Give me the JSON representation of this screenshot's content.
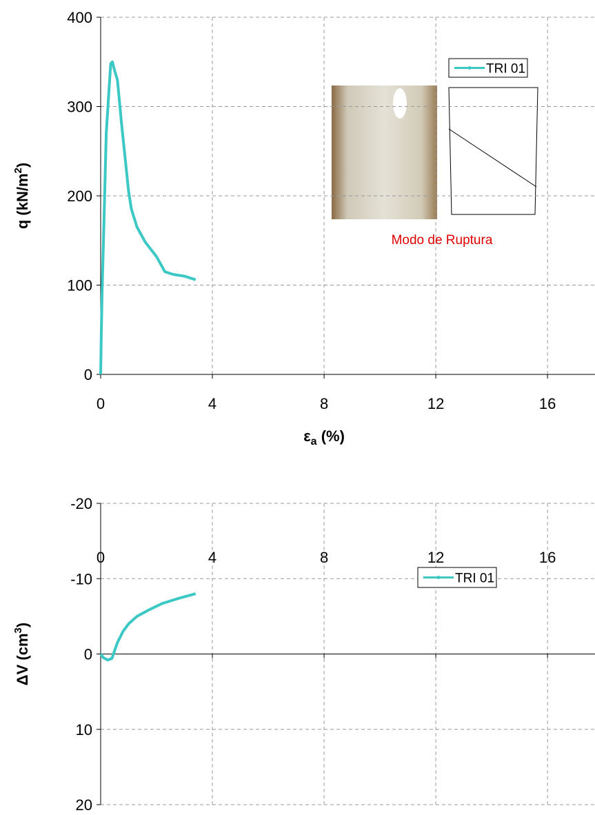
{
  "chart_data": [
    {
      "type": "line",
      "y_label": {
        "text": "q (kN/m",
        "sup": "2",
        "end": ")"
      },
      "x_label": {
        "symbol": "ε",
        "sub": "a",
        "unit": " (%)"
      },
      "annotation": "Modo de Ruptura",
      "xlim": [
        0,
        17.7
      ],
      "xticks": [
        0,
        4,
        8,
        12,
        16
      ],
      "ylim": [
        0,
        400
      ],
      "yticks": [
        0,
        100,
        200,
        300,
        400
      ],
      "grid": true,
      "legend": "upper right",
      "series": [
        {
          "name": "TRI 01",
          "color": "#3cc8c4",
          "x": [
            0,
            0.02,
            0.05,
            0.1,
            0.15,
            0.2,
            0.3,
            0.36,
            0.42,
            0.5,
            0.6,
            0.75,
            0.9,
            1.0,
            1.1,
            1.3,
            1.6,
            2.0,
            2.3,
            2.6,
            3.0,
            3.4
          ],
          "values": [
            0,
            40,
            90,
            150,
            210,
            270,
            320,
            348,
            350,
            340,
            330,
            280,
            235,
            205,
            185,
            165,
            148,
            132,
            115,
            112,
            110,
            106
          ]
        }
      ]
    },
    {
      "type": "line",
      "y_label": {
        "text": "ΔV (cm",
        "sup": "3",
        "end": ")"
      },
      "xlim": [
        0,
        17.7
      ],
      "xticks": [
        0,
        4,
        8,
        12,
        16
      ],
      "ylim": [
        -20,
        20
      ],
      "yticks": [
        -20,
        -10,
        0,
        10,
        20
      ],
      "y_inverted": true,
      "grid": true,
      "legend": "upper right",
      "series": [
        {
          "name": "TRI 01",
          "color": "#3cc8c4",
          "x": [
            0,
            0.1,
            0.25,
            0.4,
            0.6,
            0.8,
            1.0,
            1.3,
            1.7,
            2.2,
            2.8,
            3.4
          ],
          "values": [
            0,
            0.5,
            0.8,
            0.6,
            -1.5,
            -3,
            -4,
            -5,
            -5.8,
            -6.7,
            -7.4,
            -8
          ]
        }
      ]
    }
  ]
}
